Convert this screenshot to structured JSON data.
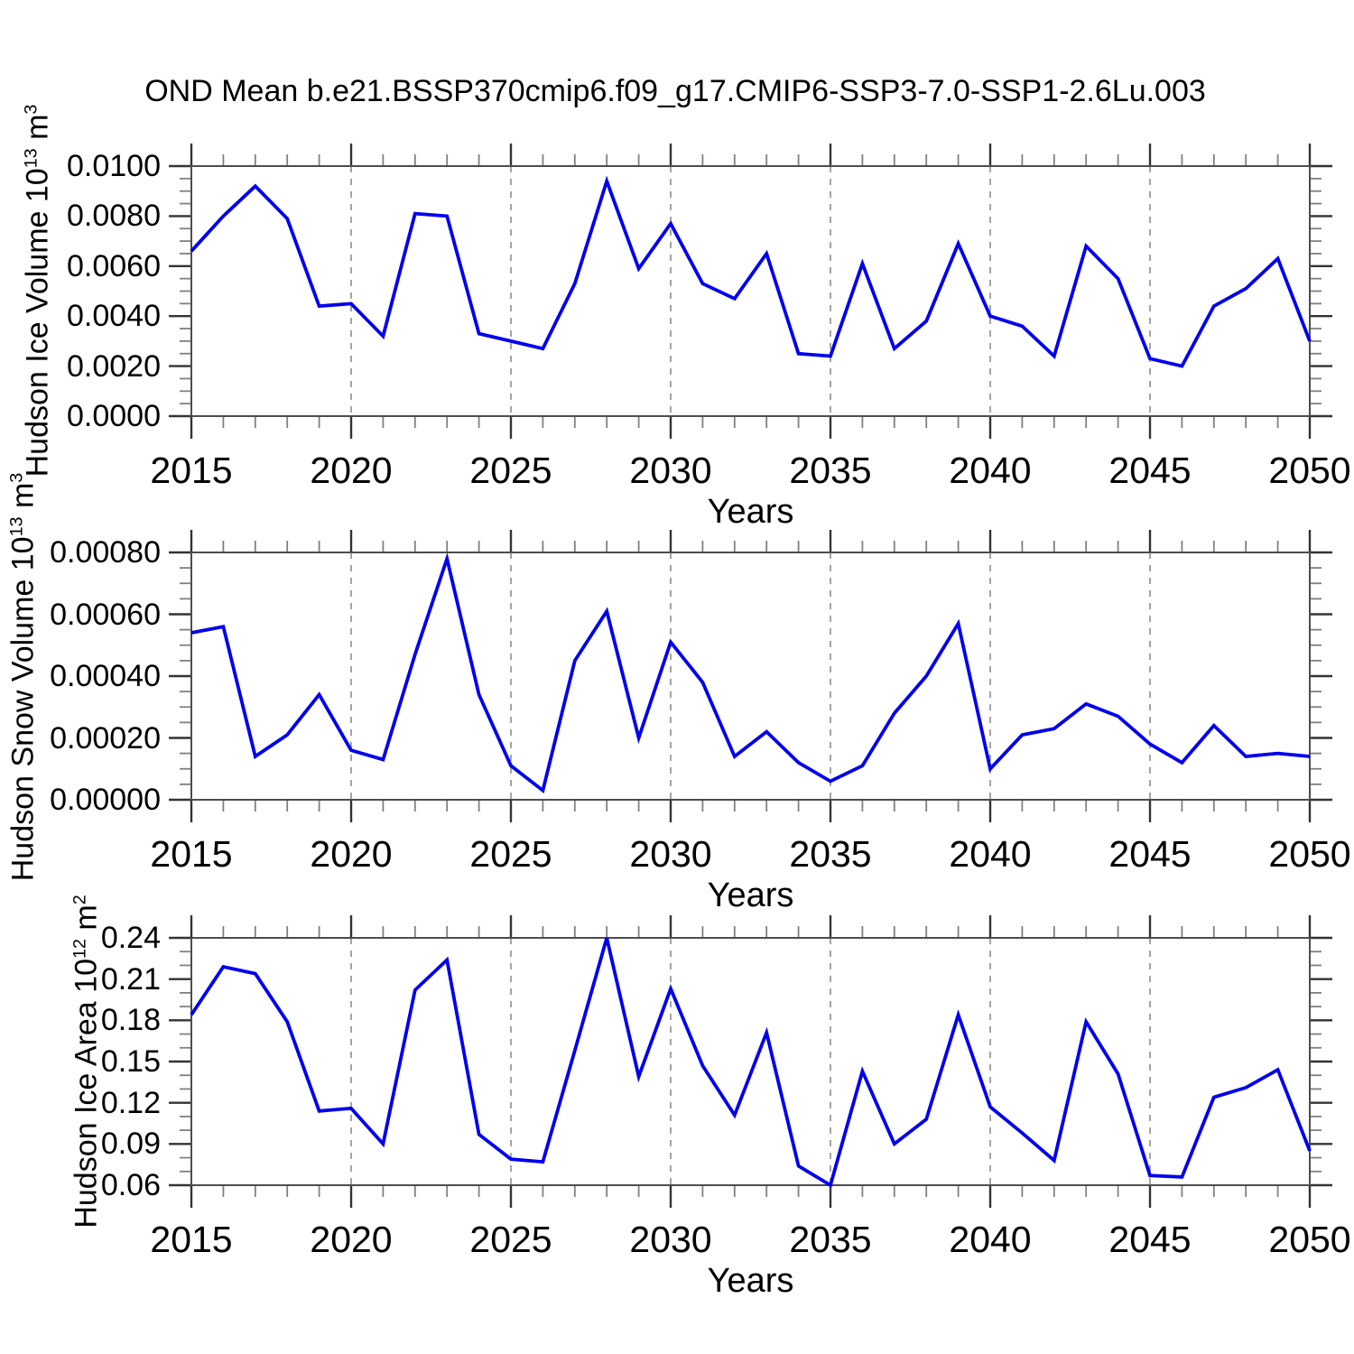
{
  "title": "OND Mean b.e21.BSSP370cmip6.f09_g17.CMIP6-SSP3-7.0-SSP1-2.6Lu.003",
  "style": {
    "line_color": "#0000EE",
    "frame_color": "#4d4d4d",
    "major_tick_color": "#333333",
    "minor_tick_color": "#808080",
    "grid_color": "#9a9a9a",
    "background": "#ffffff"
  },
  "chart_data": [
    {
      "type": "line",
      "name": "hudson-ice-volume",
      "xlabel": "Years",
      "ylabel": {
        "prefix": "Hudson Ice Volume 10",
        "sup": "13",
        "unit": " m",
        "unit_sup": "3"
      },
      "xlim": [
        2015,
        2050
      ],
      "ylim": [
        0.0,
        0.01
      ],
      "x_major_ticks": [
        2015,
        2020,
        2025,
        2030,
        2035,
        2040,
        2045,
        2050
      ],
      "x_minor_step": 1,
      "grid_years": [
        2020,
        2025,
        2030,
        2035,
        2040,
        2045
      ],
      "y_major_ticks": [
        0.0,
        0.002,
        0.004,
        0.006,
        0.008,
        0.01
      ],
      "y_tick_labels": [
        "0.0000",
        "0.0020",
        "0.0040",
        "0.0060",
        "0.0080",
        "0.0100"
      ],
      "y_minor_step": 0.0005,
      "x": [
        2015,
        2016,
        2017,
        2018,
        2019,
        2020,
        2021,
        2022,
        2023,
        2024,
        2025,
        2026,
        2027,
        2028,
        2029,
        2030,
        2031,
        2032,
        2033,
        2034,
        2035,
        2036,
        2037,
        2038,
        2039,
        2040,
        2041,
        2042,
        2043,
        2044,
        2045,
        2046,
        2047,
        2048,
        2049,
        2050
      ],
      "values": [
        0.0066,
        0.008,
        0.0092,
        0.0079,
        0.0044,
        0.0045,
        0.0032,
        0.0081,
        0.008,
        0.0033,
        0.003,
        0.0027,
        0.0053,
        0.0094,
        0.0059,
        0.0077,
        0.0053,
        0.0047,
        0.0065,
        0.0025,
        0.0024,
        0.0061,
        0.0027,
        0.0038,
        0.0069,
        0.004,
        0.0036,
        0.0024,
        0.0068,
        0.0055,
        0.0023,
        0.002,
        0.0044,
        0.0051,
        0.0063,
        0.003
      ]
    },
    {
      "type": "line",
      "name": "hudson-snow-volume",
      "xlabel": "Years",
      "ylabel": {
        "prefix": "Hudson Snow Volume 10",
        "sup": "13",
        "unit": " m",
        "unit_sup": "3"
      },
      "xlim": [
        2015,
        2050
      ],
      "ylim": [
        0.0,
        0.0008
      ],
      "x_major_ticks": [
        2015,
        2020,
        2025,
        2030,
        2035,
        2040,
        2045,
        2050
      ],
      "x_minor_step": 1,
      "grid_years": [
        2020,
        2025,
        2030,
        2035,
        2040,
        2045
      ],
      "y_major_ticks": [
        0.0,
        0.0002,
        0.0004,
        0.0006,
        0.0008
      ],
      "y_tick_labels": [
        "0.00000",
        "0.00020",
        "0.00040",
        "0.00060",
        "0.00080"
      ],
      "y_minor_step": 5e-05,
      "x": [
        2015,
        2016,
        2017,
        2018,
        2019,
        2020,
        2021,
        2022,
        2023,
        2024,
        2025,
        2026,
        2027,
        2028,
        2029,
        2030,
        2031,
        2032,
        2033,
        2034,
        2035,
        2036,
        2037,
        2038,
        2039,
        2040,
        2041,
        2042,
        2043,
        2044,
        2045,
        2046,
        2047,
        2048,
        2049,
        2050
      ],
      "values": [
        0.00054,
        0.00056,
        0.00014,
        0.00021,
        0.00034,
        0.00016,
        0.00013,
        0.00047,
        0.00078,
        0.00034,
        0.00011,
        3e-05,
        0.00045,
        0.00061,
        0.0002,
        0.00051,
        0.00038,
        0.00014,
        0.00022,
        0.00012,
        6e-05,
        0.00011,
        0.00028,
        0.0004,
        0.00057,
        0.0001,
        0.00021,
        0.00023,
        0.00031,
        0.00027,
        0.00018,
        0.00012,
        0.00024,
        0.00014,
        0.00015,
        0.00014
      ]
    },
    {
      "type": "line",
      "name": "hudson-ice-area",
      "xlabel": "Years",
      "ylabel": {
        "prefix": "Hudson Ice Area 10",
        "sup": "12",
        "unit": " m",
        "unit_sup": "2"
      },
      "xlim": [
        2015,
        2050
      ],
      "ylim": [
        0.06,
        0.24
      ],
      "x_major_ticks": [
        2015,
        2020,
        2025,
        2030,
        2035,
        2040,
        2045,
        2050
      ],
      "x_minor_step": 1,
      "grid_years": [
        2020,
        2025,
        2030,
        2035,
        2040,
        2045
      ],
      "y_major_ticks": [
        0.06,
        0.09,
        0.12,
        0.15,
        0.18,
        0.21,
        0.24
      ],
      "y_tick_labels": [
        "0.06",
        "0.09",
        "0.12",
        "0.15",
        "0.18",
        "0.21",
        "0.24"
      ],
      "y_minor_step": 0.01,
      "x": [
        2015,
        2016,
        2017,
        2018,
        2019,
        2020,
        2021,
        2022,
        2023,
        2024,
        2025,
        2026,
        2027,
        2028,
        2029,
        2030,
        2031,
        2032,
        2033,
        2034,
        2035,
        2036,
        2037,
        2038,
        2039,
        2040,
        2041,
        2042,
        2043,
        2044,
        2045,
        2046,
        2047,
        2048,
        2049,
        2050
      ],
      "values": [
        0.184,
        0.219,
        0.214,
        0.179,
        0.114,
        0.116,
        0.09,
        0.202,
        0.224,
        0.097,
        0.079,
        0.077,
        0.158,
        0.24,
        0.139,
        0.203,
        0.147,
        0.111,
        0.171,
        0.074,
        0.06,
        0.143,
        0.09,
        0.108,
        0.184,
        0.117,
        0.098,
        0.078,
        0.179,
        0.141,
        0.067,
        0.066,
        0.124,
        0.131,
        0.144,
        0.085
      ]
    }
  ]
}
